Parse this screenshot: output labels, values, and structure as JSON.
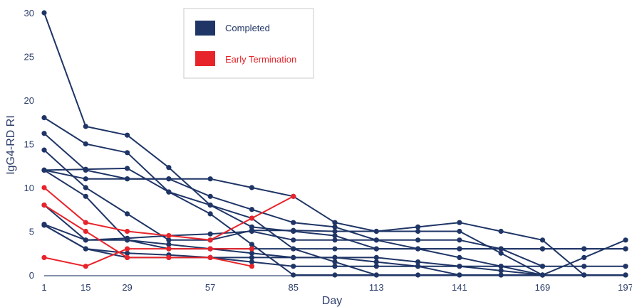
{
  "colors": {
    "completed": "#1f3566",
    "early": "#e8242b",
    "axis": "#3b4d78",
    "text": "#2c3e6b"
  },
  "chart_data": {
    "type": "line",
    "title": "",
    "xlabel": "Day",
    "ylabel": "IgG4-RD RI",
    "xlim": [
      1,
      197
    ],
    "ylim": [
      0,
      30
    ],
    "x_ticks": [
      1,
      15,
      29,
      57,
      85,
      113,
      141,
      169,
      197
    ],
    "y_ticks": [
      0,
      5,
      10,
      15,
      20,
      25,
      30
    ],
    "grid": false,
    "legend_position": "top-center",
    "legend": [
      {
        "label": "Completed",
        "color": "#1f3566"
      },
      {
        "label": "Early Termination",
        "color": "#e8242b"
      }
    ],
    "series": [
      {
        "group": "Completed",
        "points": [
          [
            1,
            30
          ],
          [
            15,
            17
          ],
          [
            29,
            16
          ],
          [
            43,
            12.3
          ],
          [
            57,
            8
          ],
          [
            71,
            6.5
          ],
          [
            85,
            3
          ],
          [
            99,
            1.5
          ],
          [
            113,
            0
          ]
        ]
      },
      {
        "group": "Completed",
        "points": [
          [
            1,
            18
          ],
          [
            15,
            15
          ],
          [
            29,
            14
          ],
          [
            43,
            9.5
          ],
          [
            57,
            7
          ],
          [
            71,
            3.5
          ],
          [
            85,
            0
          ],
          [
            99,
            0
          ],
          [
            113,
            0
          ],
          [
            127,
            0
          ],
          [
            141,
            0
          ],
          [
            155,
            0
          ],
          [
            169,
            0
          ],
          [
            183,
            0
          ],
          [
            197,
            0
          ]
        ]
      },
      {
        "group": "Completed",
        "points": [
          [
            1,
            16.2
          ],
          [
            15,
            12
          ],
          [
            29,
            11
          ],
          [
            43,
            11
          ],
          [
            57,
            9
          ],
          [
            71,
            7.5
          ],
          [
            85,
            6
          ],
          [
            99,
            5.5
          ],
          [
            113,
            4
          ],
          [
            127,
            3
          ],
          [
            141,
            2
          ],
          [
            155,
            1
          ],
          [
            169,
            0
          ],
          [
            183,
            2
          ],
          [
            197,
            4
          ]
        ]
      },
      {
        "group": "Completed",
        "points": [
          [
            1,
            14.3
          ],
          [
            15,
            10
          ],
          [
            29,
            7
          ],
          [
            43,
            4
          ],
          [
            57,
            4
          ],
          [
            71,
            5.1
          ],
          [
            85,
            5.1
          ],
          [
            99,
            5
          ],
          [
            113,
            5
          ],
          [
            127,
            5
          ],
          [
            141,
            5
          ],
          [
            155,
            2.5
          ],
          [
            169,
            0
          ]
        ]
      },
      {
        "group": "Completed",
        "points": [
          [
            1,
            12
          ],
          [
            15,
            12.1
          ],
          [
            29,
            12.2
          ],
          [
            43,
            9.5
          ],
          [
            57,
            8
          ],
          [
            71,
            5.5
          ],
          [
            85,
            5
          ],
          [
            99,
            4.5
          ],
          [
            113,
            3
          ],
          [
            127,
            3
          ],
          [
            141,
            3
          ],
          [
            155,
            3
          ],
          [
            169,
            3
          ],
          [
            183,
            3
          ],
          [
            197,
            3
          ]
        ]
      },
      {
        "group": "Completed",
        "points": [
          [
            1,
            12
          ],
          [
            15,
            11
          ],
          [
            29,
            11
          ],
          [
            43,
            11
          ],
          [
            57,
            11
          ],
          [
            71,
            10
          ],
          [
            85,
            9
          ],
          [
            99,
            6
          ],
          [
            113,
            5
          ],
          [
            127,
            5.5
          ],
          [
            141,
            6
          ],
          [
            155,
            5
          ],
          [
            169,
            4
          ],
          [
            183,
            0
          ]
        ]
      },
      {
        "group": "Completed",
        "points": [
          [
            1,
            12
          ],
          [
            15,
            9
          ],
          [
            29,
            4
          ],
          [
            43,
            3.5
          ],
          [
            57,
            3
          ],
          [
            71,
            2.5
          ],
          [
            85,
            2
          ],
          [
            99,
            2
          ],
          [
            113,
            2
          ],
          [
            127,
            1.5
          ],
          [
            141,
            1
          ],
          [
            155,
            0.5
          ],
          [
            169,
            0
          ]
        ]
      },
      {
        "group": "Completed",
        "points": [
          [
            1,
            8
          ],
          [
            15,
            4
          ],
          [
            29,
            4.2
          ],
          [
            43,
            4.5
          ],
          [
            57,
            4.7
          ],
          [
            71,
            5
          ],
          [
            85,
            4
          ],
          [
            99,
            4
          ],
          [
            113,
            4
          ],
          [
            127,
            4
          ],
          [
            141,
            4
          ],
          [
            155,
            3
          ],
          [
            169,
            1
          ]
        ]
      },
      {
        "group": "Completed",
        "points": [
          [
            1,
            5.8
          ],
          [
            15,
            4
          ],
          [
            29,
            4
          ],
          [
            43,
            3
          ],
          [
            57,
            3
          ],
          [
            71,
            3
          ],
          [
            85,
            3
          ],
          [
            99,
            3
          ],
          [
            113,
            3
          ],
          [
            127,
            3
          ],
          [
            141,
            3
          ],
          [
            155,
            3
          ],
          [
            169,
            3
          ],
          [
            183,
            3
          ],
          [
            197,
            3
          ]
        ]
      },
      {
        "group": "Completed",
        "points": [
          [
            1,
            5.7
          ],
          [
            15,
            3
          ],
          [
            29,
            2
          ],
          [
            43,
            2
          ],
          [
            57,
            2
          ],
          [
            71,
            1.5
          ],
          [
            85,
            1
          ],
          [
            99,
            1
          ],
          [
            113,
            1
          ],
          [
            127,
            1
          ],
          [
            141,
            1
          ],
          [
            155,
            1
          ],
          [
            169,
            1
          ],
          [
            183,
            1
          ],
          [
            197,
            1
          ]
        ]
      },
      {
        "group": "Completed",
        "points": [
          [
            1,
            5.7
          ],
          [
            15,
            3
          ],
          [
            29,
            2.5
          ],
          [
            43,
            2.3
          ],
          [
            57,
            2
          ],
          [
            71,
            2
          ],
          [
            85,
            2
          ],
          [
            99,
            2
          ],
          [
            113,
            1.5
          ],
          [
            127,
            1
          ],
          [
            141,
            0
          ],
          [
            155,
            0
          ],
          [
            169,
            0
          ],
          [
            183,
            0
          ],
          [
            197,
            0
          ]
        ]
      },
      {
        "group": "Early Termination",
        "points": [
          [
            1,
            10
          ],
          [
            15,
            6
          ],
          [
            29,
            5
          ],
          [
            43,
            4.5
          ],
          [
            57,
            4
          ],
          [
            71,
            6.5
          ],
          [
            85,
            9
          ]
        ]
      },
      {
        "group": "Early Termination",
        "points": [
          [
            1,
            8
          ],
          [
            15,
            5
          ],
          [
            29,
            2
          ],
          [
            43,
            2
          ],
          [
            57,
            2
          ],
          [
            71,
            1
          ]
        ]
      },
      {
        "group": "Early Termination",
        "points": [
          [
            1,
            2
          ],
          [
            15,
            1
          ],
          [
            29,
            3
          ],
          [
            43,
            3
          ],
          [
            57,
            3
          ],
          [
            71,
            3
          ]
        ]
      }
    ]
  }
}
